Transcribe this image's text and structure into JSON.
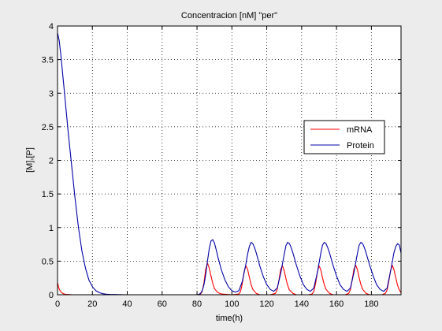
{
  "colors": {
    "figure_bg": "#ececec",
    "axes_bg": "#ffffff",
    "mrna": "#ff0000",
    "protein": "#0000a8",
    "grid": "#000000"
  },
  "chart_data": {
    "type": "line",
    "title": "Concentracion [nM] \"per\"",
    "xlabel": "time(h)",
    "ylabel": "[M],[P]",
    "xlim": [
      0,
      197
    ],
    "ylim": [
      0,
      4
    ],
    "x_ticks": [
      0,
      20,
      40,
      60,
      80,
      100,
      120,
      140,
      160,
      180
    ],
    "y_ticks": [
      0,
      0.5,
      1,
      1.5,
      2,
      2.5,
      3,
      3.5,
      4
    ],
    "x_tick_labels": [
      "0",
      "20",
      "40",
      "60",
      "80",
      "100",
      "120",
      "140",
      "160",
      "180"
    ],
    "y_tick_labels": [
      "0",
      "0.5",
      "1",
      "1.5",
      "2",
      "2.5",
      "3",
      "3.5",
      "4"
    ],
    "grid": true,
    "legend": {
      "placement": "right",
      "entries": [
        "mRNA",
        "Protein"
      ]
    },
    "series": [
      {
        "name": "mRNA",
        "color": "#ff0000",
        "x": [
          0,
          1,
          2,
          3,
          4,
          5,
          6,
          8,
          10,
          20,
          40,
          60,
          80,
          82,
          83,
          84,
          85,
          86,
          87,
          88,
          89,
          90,
          92,
          94,
          100,
          104,
          105,
          106,
          107,
          108,
          109,
          110,
          111,
          112,
          114,
          116,
          122,
          125,
          126,
          127,
          128,
          129,
          130,
          131,
          132,
          133,
          135,
          137,
          144,
          146,
          147,
          148,
          149,
          150,
          151,
          152,
          153,
          154,
          156,
          158,
          165,
          167,
          168,
          169,
          170,
          171,
          172,
          173,
          174,
          175,
          177,
          179,
          186,
          188,
          189,
          190,
          191,
          192,
          193,
          194,
          195,
          196,
          197
        ],
        "y": [
          0.18,
          0.08,
          0.04,
          0.02,
          0.01,
          0.005,
          0.003,
          0.001,
          0.0,
          0.0,
          0.0,
          0.0,
          0.0,
          0.01,
          0.05,
          0.18,
          0.38,
          0.47,
          0.4,
          0.28,
          0.17,
          0.09,
          0.03,
          0.01,
          0.0,
          0.01,
          0.05,
          0.17,
          0.34,
          0.43,
          0.38,
          0.26,
          0.15,
          0.08,
          0.02,
          0.0,
          0.0,
          0.02,
          0.08,
          0.22,
          0.38,
          0.43,
          0.36,
          0.24,
          0.14,
          0.07,
          0.02,
          0.0,
          0.0,
          0.01,
          0.05,
          0.17,
          0.34,
          0.43,
          0.37,
          0.25,
          0.15,
          0.08,
          0.02,
          0.0,
          0.0,
          0.02,
          0.08,
          0.22,
          0.38,
          0.44,
          0.37,
          0.25,
          0.15,
          0.08,
          0.02,
          0.0,
          0.0,
          0.02,
          0.07,
          0.2,
          0.36,
          0.44,
          0.37,
          0.25,
          0.14,
          0.07,
          0.03
        ]
      },
      {
        "name": "Protein",
        "color": "#0000a8",
        "x": [
          0,
          1,
          2,
          4,
          6,
          8,
          10,
          12,
          14,
          16,
          18,
          20,
          22,
          24,
          26,
          28,
          30,
          35,
          40,
          60,
          80,
          81,
          82,
          83,
          84,
          85,
          86,
          87,
          88,
          89,
          90,
          91,
          92,
          94,
          96,
          98,
          100,
          102,
          104,
          106,
          108,
          109,
          110,
          111,
          112,
          113,
          114,
          116,
          118,
          120,
          122,
          124,
          126,
          128,
          130,
          131,
          132,
          133,
          134,
          135,
          137,
          139,
          141,
          143,
          145,
          147,
          149,
          151,
          152,
          153,
          154,
          155,
          156,
          158,
          160,
          162,
          164,
          166,
          168,
          170,
          172,
          173,
          174,
          175,
          176,
          177,
          179,
          181,
          183,
          185,
          187,
          189,
          191,
          193,
          194,
          195,
          196,
          197
        ],
        "y": [
          3.9,
          3.78,
          3.55,
          3.0,
          2.45,
          1.95,
          1.45,
          1.0,
          0.65,
          0.4,
          0.22,
          0.12,
          0.06,
          0.03,
          0.015,
          0.008,
          0.005,
          0.002,
          0.0,
          0.0,
          0.0,
          0.005,
          0.02,
          0.06,
          0.15,
          0.3,
          0.5,
          0.68,
          0.8,
          0.82,
          0.77,
          0.67,
          0.56,
          0.37,
          0.22,
          0.12,
          0.06,
          0.04,
          0.06,
          0.2,
          0.45,
          0.6,
          0.72,
          0.78,
          0.76,
          0.7,
          0.62,
          0.43,
          0.27,
          0.15,
          0.08,
          0.05,
          0.1,
          0.32,
          0.6,
          0.73,
          0.78,
          0.76,
          0.7,
          0.62,
          0.44,
          0.28,
          0.15,
          0.08,
          0.05,
          0.1,
          0.33,
          0.62,
          0.74,
          0.78,
          0.76,
          0.7,
          0.62,
          0.44,
          0.28,
          0.15,
          0.08,
          0.05,
          0.1,
          0.33,
          0.62,
          0.74,
          0.78,
          0.76,
          0.7,
          0.62,
          0.44,
          0.28,
          0.15,
          0.08,
          0.05,
          0.1,
          0.35,
          0.63,
          0.72,
          0.76,
          0.74,
          0.62
        ]
      }
    ]
  }
}
